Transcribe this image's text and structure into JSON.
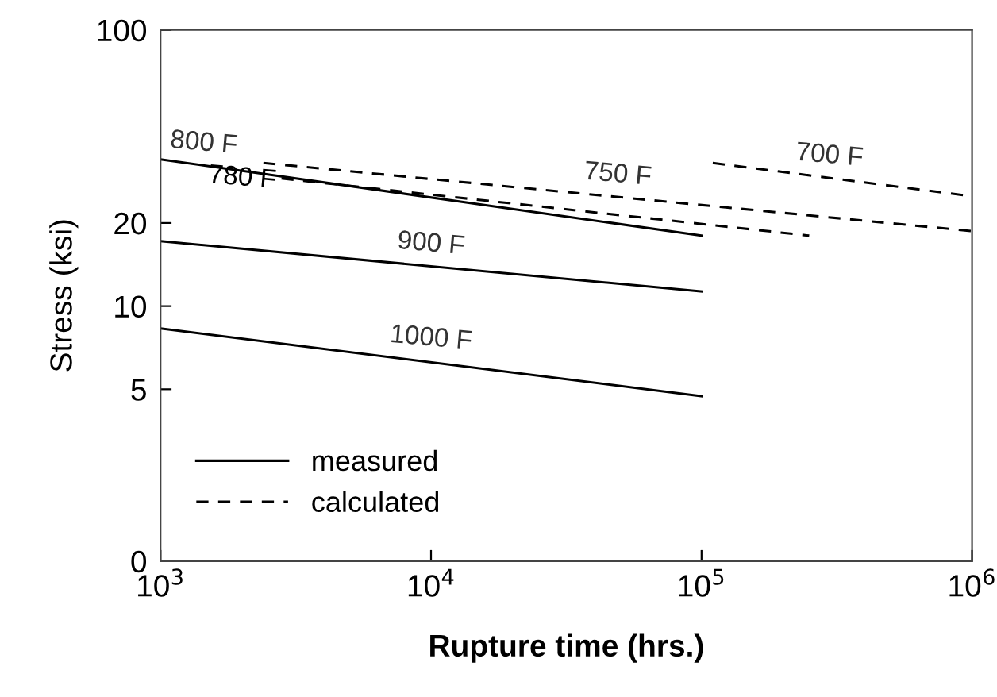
{
  "chart_data": {
    "type": "line",
    "xlabel": "Rupture time (hrs.)",
    "ylabel": "Stress (ksi)",
    "log": "xy",
    "xlim": [
      1000,
      1000000
    ],
    "ylim": [
      0,
      100
    ],
    "xticks": [
      {
        "value": 1000,
        "label": "10$^{3}$"
      },
      {
        "value": 10000,
        "label": "10$^{4}$"
      },
      {
        "value": 100000,
        "label": "10$^{5}$"
      },
      {
        "value": 1000000,
        "label": "10$^{6}$"
      }
    ],
    "yticks": [
      0,
      5,
      10,
      20,
      100
    ],
    "grid": false,
    "marker": "none",
    "series": [
      {
        "name": "800 F",
        "color": "#000000",
        "line_style": "solid",
        "x": [
          1000,
          100000
        ],
        "values": [
          34,
          18
        ]
      },
      {
        "name": "900 F",
        "color": "#000000",
        "line_style": "solid",
        "x": [
          1000,
          100000
        ],
        "values": [
          17.2,
          11.3
        ]
      },
      {
        "name": "1000 F",
        "color": "#000000",
        "line_style": "solid",
        "x": [
          1000,
          100000
        ],
        "values": [
          8.3,
          4.8
        ]
      },
      {
        "name": "780 F",
        "color": "#000000",
        "line_style": "dashed",
        "x": [
          2800,
          250000
        ],
        "values": [
          29,
          18
        ]
      },
      {
        "name": "750 F",
        "color": "#000000",
        "line_style": "dashed",
        "x": [
          2400,
          1000000
        ],
        "values": [
          33,
          18.7
        ]
      },
      {
        "name": "700 F",
        "color": "#000000",
        "line_style": "dashed",
        "x": [
          110000,
          1000000
        ],
        "values": [
          33,
          25
        ]
      }
    ],
    "annotations": [
      "measured",
      "calculated"
    ]
  }
}
